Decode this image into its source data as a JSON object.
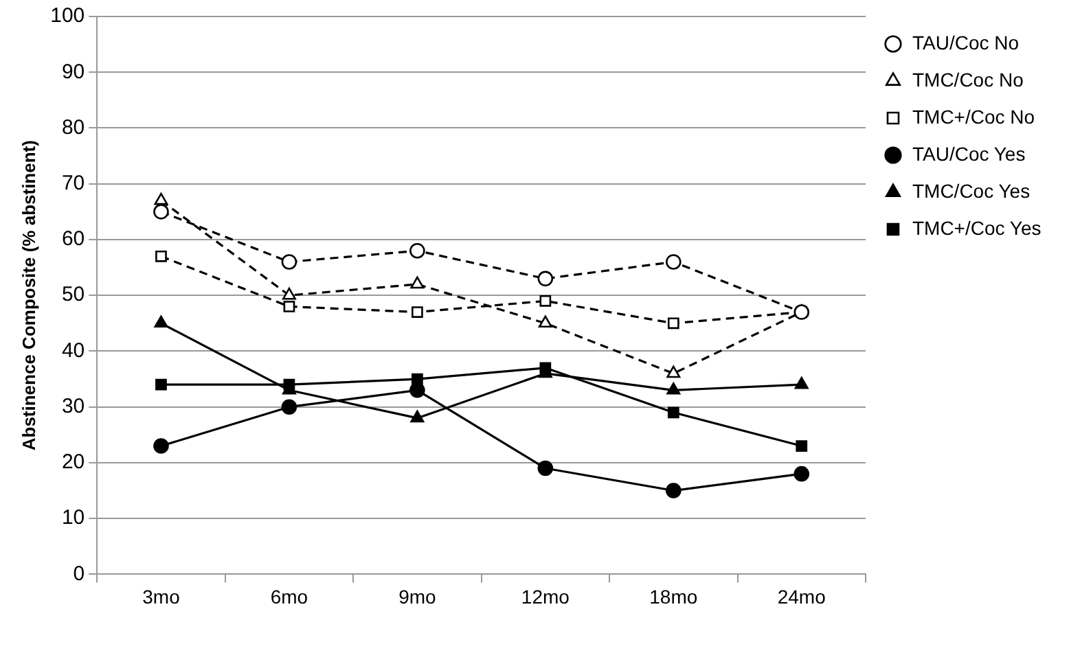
{
  "chart_data": {
    "type": "line",
    "ylabel": "Abstinence Composite (% abstinent)",
    "categories": [
      "3mo",
      "6mo",
      "9mo",
      "12mo",
      "18mo",
      "24mo"
    ],
    "ylim": [
      0,
      100
    ],
    "yticks": [
      0,
      10,
      20,
      30,
      40,
      50,
      60,
      70,
      80,
      90,
      100
    ],
    "grid": "y",
    "legend": "top right",
    "series": [
      {
        "name": "TAU/Coc No",
        "color": "#000000",
        "marker": "circle",
        "line_style": "dashed",
        "values": [
          65,
          56,
          58,
          53,
          56,
          47
        ]
      },
      {
        "name": "TMC/Coc No",
        "color": "#000000",
        "marker": "triangle",
        "line_style": "dashed",
        "values": [
          67,
          50,
          52,
          45,
          36,
          47
        ]
      },
      {
        "name": "TMC+/Coc No",
        "color": "#000000",
        "marker": "square",
        "line_style": "dashed",
        "values": [
          57,
          48,
          47,
          49,
          45,
          47
        ]
      },
      {
        "name": "TAU/Coc Yes",
        "color": "#000000",
        "marker": "circle",
        "line_style": "solid",
        "values": [
          23,
          30,
          33,
          19,
          15,
          18
        ]
      },
      {
        "name": "TMC/Coc Yes",
        "color": "#000000",
        "marker": "triangle",
        "line_style": "solid",
        "values": [
          45,
          33,
          28,
          36,
          33,
          34
        ]
      },
      {
        "name": "TMC+/Coc Yes",
        "color": "#000000",
        "marker": "square",
        "line_style": "solid",
        "values": [
          34,
          34,
          35,
          37,
          29,
          23
        ]
      }
    ]
  }
}
